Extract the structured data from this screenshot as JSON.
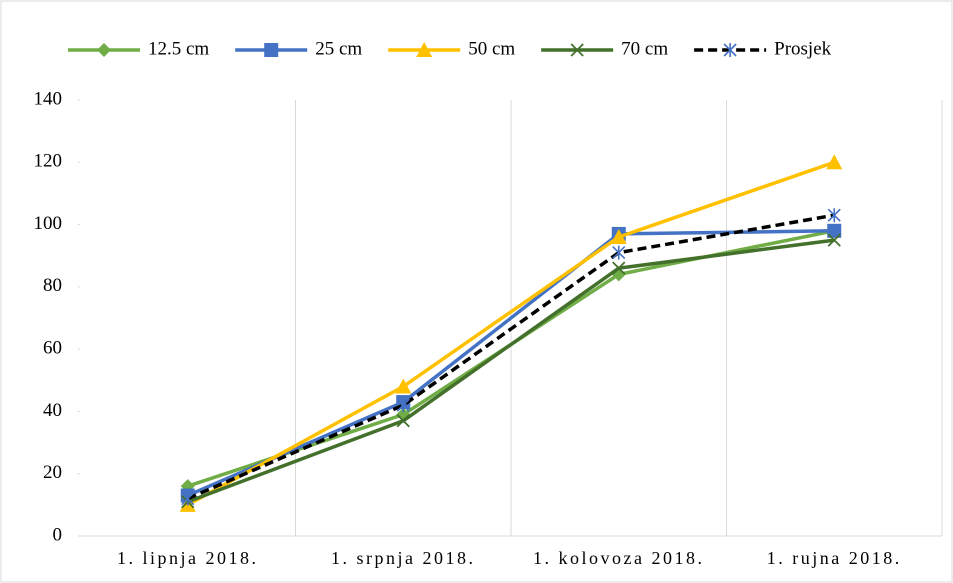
{
  "chart_data": {
    "type": "line",
    "categories": [
      "1. lipnja 2018.",
      "1. srpnja 2018.",
      "1. kolovoza 2018.",
      "1. rujna 2018."
    ],
    "series": [
      {
        "name": "12.5 cm",
        "color": "#70ad47",
        "marker": "diamond",
        "values": [
          16,
          39,
          84,
          98
        ]
      },
      {
        "name": "25 cm",
        "color": "#4472c4",
        "marker": "square",
        "values": [
          13,
          43,
          97,
          98
        ]
      },
      {
        "name": "50 cm",
        "color": "#ffc000",
        "marker": "triangle",
        "values": [
          10,
          48,
          96,
          120
        ]
      },
      {
        "name": "70 cm",
        "color": "#43702b",
        "marker": "x",
        "values": [
          11,
          37,
          86,
          95
        ]
      },
      {
        "name": "Prosjek",
        "color": "#000000",
        "marker": "star",
        "dashed": true,
        "values": [
          12,
          42,
          91,
          103
        ]
      }
    ],
    "ylim": [
      0,
      140
    ],
    "yticks": [
      0,
      20,
      40,
      60,
      80,
      100,
      120,
      140
    ],
    "grid": "vertical",
    "legend": "top"
  }
}
